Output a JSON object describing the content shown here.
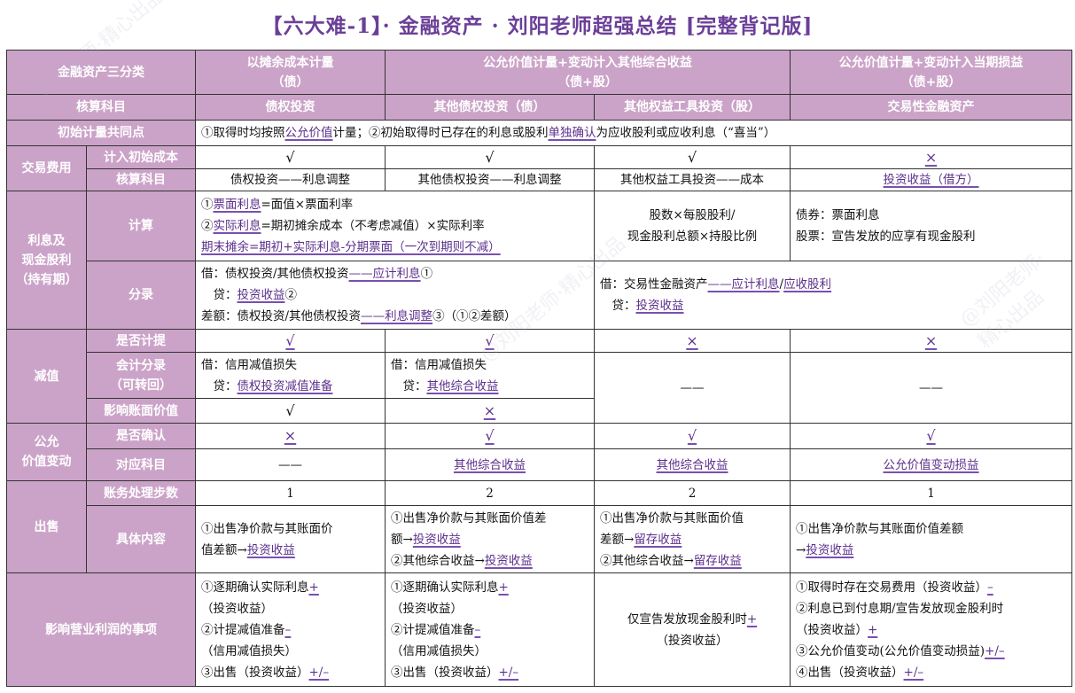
{
  "title": "【六大难-1】· 金融资产 · 刘阳老师超强总结 [完整背记版]",
  "header": {
    "classification": "金融资产三分类",
    "amortized": [
      "以摊余成本计量",
      "（债）"
    ],
    "fvoci": [
      "公允价值计量+变动计入其他综合收益",
      "（债+股）"
    ],
    "fvtpl": [
      "公允价值计量+变动计入当期损益",
      "（债+股）"
    ],
    "account_label": "核算科目",
    "accounts": [
      "债权投资",
      "其他债权投资（债）",
      "其他权益工具投资（股）",
      "交易性金融资产"
    ]
  },
  "initial": {
    "label": "初始计量共同点",
    "text": [
      [
        {
          "t": "①取得时均按照"
        },
        {
          "t": "公允价值",
          "u": true
        },
        {
          "t": "计量；②初始取得时已存在的利息或股利"
        },
        {
          "t": "单独确认",
          "u": true
        },
        {
          "t": "为应收股利或应收利息（“喜当”）"
        }
      ]
    ]
  },
  "fees": {
    "label": "交易费用",
    "row1_label": "计入初始成本",
    "row1": [
      "√",
      "√",
      "√",
      "×"
    ],
    "row2_label": "核算科目",
    "row2": [
      "债权投资——利息调整",
      "其他债权投资——利息调整",
      "其他权益工具投资——成本",
      "投资收益（借方）"
    ]
  },
  "interest": {
    "label": [
      "利息及",
      "现金股利",
      "（持有期）"
    ],
    "calc_label": "计算",
    "calc_debt": [
      [
        {
          "t": "①"
        },
        {
          "t": "票面利息",
          "u": true
        },
        {
          "t": "=面值×票面利率"
        }
      ],
      [
        {
          "t": "②"
        },
        {
          "t": "实际利息",
          "u": true
        },
        {
          "t": "=期初摊余成本（不考虑减值）×实际利率"
        }
      ],
      [
        {
          "t": "期末摊余=期初+实际利息-分期票面（一次到期则不减）",
          "u": true
        }
      ]
    ],
    "calc_equity": [
      [
        {
          "t": "股数×每股股利/"
        }
      ],
      [
        {
          "t": "现金股利总额×持股比例"
        }
      ]
    ],
    "calc_trading": [
      [
        {
          "t": "债券：票面利息"
        }
      ],
      [
        {
          "t": "股票：宣告发放的应享有现金股利"
        }
      ]
    ],
    "entry_label": "分录",
    "entry_debt": [
      [
        {
          "t": "借：债权投资/其他债权投资"
        },
        {
          "t": "——应计利息",
          "u": true
        },
        {
          "t": "①"
        }
      ],
      [
        {
          "t": "　贷："
        },
        {
          "t": "投资收益",
          "u": true
        },
        {
          "t": "②"
        }
      ],
      [
        {
          "t": "差额：债权投资/其他债权投资"
        },
        {
          "t": "——利息调整",
          "u": true
        },
        {
          "t": "③（①②差额）"
        }
      ]
    ],
    "entry_other": [
      [
        {
          "t": "借：交易性金融资产"
        },
        {
          "t": "——应计利息",
          "u": true
        },
        {
          "t": "/"
        },
        {
          "t": "应收股利",
          "u": true
        }
      ],
      [
        {
          "t": "　贷："
        },
        {
          "t": "投资收益",
          "u": true
        }
      ]
    ]
  },
  "impairment": {
    "label": "减值",
    "accrue_label": "是否计提",
    "accrue": [
      "√",
      "√",
      "×",
      "×"
    ],
    "entry_label": [
      "会计分录",
      "（可转回）"
    ],
    "entry_debt": [
      [
        {
          "t": "借：信用减值损失"
        }
      ],
      [
        {
          "t": "　贷："
        },
        {
          "t": "债权投资减值准备",
          "u": true
        }
      ]
    ],
    "entry_oci": [
      [
        {
          "t": "借：信用减值损失"
        }
      ],
      [
        {
          "t": "　贷："
        },
        {
          "t": "其他综合收益",
          "u": true
        }
      ]
    ],
    "entry_none": [
      "——",
      "——"
    ],
    "carrying_label": "影响账面价值",
    "carrying": [
      "√",
      "×"
    ]
  },
  "fair_value": {
    "label": [
      "公允",
      "价值变动"
    ],
    "recognize_label": "是否确认",
    "recognize": [
      "×",
      "√",
      "√",
      "√"
    ],
    "account_label": "对应科目",
    "accounts": [
      "——",
      "其他综合收益",
      "其他综合收益",
      "公允价值变动损益"
    ]
  },
  "sale": {
    "label": "出售",
    "steps_label": "账务处理步数",
    "steps": [
      "1",
      "2",
      "2",
      "1"
    ],
    "content_label": "具体内容",
    "content": [
      [
        [
          {
            "t": "①出售净价款与其账面价"
          }
        ],
        [
          {
            "t": "值差额→"
          },
          {
            "t": "投资收益",
            "u": true
          }
        ]
      ],
      [
        [
          {
            "t": "①出售净价款与其账面价值差"
          }
        ],
        [
          {
            "t": "额→"
          },
          {
            "t": "投资收益",
            "u": true
          }
        ],
        [
          {
            "t": "②其他综合收益→"
          },
          {
            "t": "投资收益",
            "u": true
          }
        ]
      ],
      [
        [
          {
            "t": "①出售净价款与其账面价值"
          }
        ],
        [
          {
            "t": "差额→"
          },
          {
            "t": "留存收益",
            "u": true
          }
        ],
        [
          {
            "t": "②其他综合收益→"
          },
          {
            "t": "留存收益",
            "u": true
          }
        ]
      ],
      [
        [
          {
            "t": "①出售净价款与其账面价值差额"
          }
        ],
        [
          {
            "t": "→"
          },
          {
            "t": "投资收益",
            "u": true
          }
        ]
      ]
    ]
  },
  "profit": {
    "label": "影响营业利润的事项",
    "items": [
      [
        [
          {
            "t": "①逐期确认实际利息"
          },
          {
            "t": "+",
            "u": true
          }
        ],
        [
          {
            "t": "（投资收益）"
          }
        ],
        [
          {
            "t": "②计提减值准备"
          },
          {
            "t": "–",
            "u": true
          }
        ],
        [
          {
            "t": "（信用减值损失）"
          }
        ],
        [
          {
            "t": "③出售（投资收益）"
          },
          {
            "t": "+/–",
            "u": true
          }
        ]
      ],
      [
        [
          {
            "t": "①逐期确认实际利息"
          },
          {
            "t": "+",
            "u": true
          }
        ],
        [
          {
            "t": "（投资收益）"
          }
        ],
        [
          {
            "t": "②计提减值准备"
          },
          {
            "t": "–",
            "u": true
          }
        ],
        [
          {
            "t": "（信用减值损失）"
          }
        ],
        [
          {
            "t": "③出售（投资收益）"
          },
          {
            "t": "+/–",
            "u": true
          }
        ]
      ],
      [
        [
          {
            "t": "仅宣告发放现金股利时"
          },
          {
            "t": "+",
            "u": true
          }
        ],
        [
          {
            "t": "（投资收益）"
          }
        ]
      ],
      [
        [
          {
            "t": "①取得时存在交易费用（投资收益）"
          },
          {
            "t": "–",
            "u": true
          }
        ],
        [
          {
            "t": "②利息已到付息期/宣告发放现金股利时"
          }
        ],
        [
          {
            "t": "（投资收益）"
          },
          {
            "t": "+",
            "u": true
          }
        ],
        [
          {
            "t": "③公允价值变动(公允价值变动损益)"
          },
          {
            "t": "+/–",
            "u": true
          }
        ],
        [
          {
            "t": "④出售（投资收益）"
          },
          {
            "t": "+/–",
            "u": true
          }
        ]
      ]
    ]
  },
  "watermark": "@刘阳老师·精心出品",
  "colors": {
    "header_bg": "#cba3c8",
    "accent": "#5b2f8c",
    "title": "#6b3f98"
  }
}
